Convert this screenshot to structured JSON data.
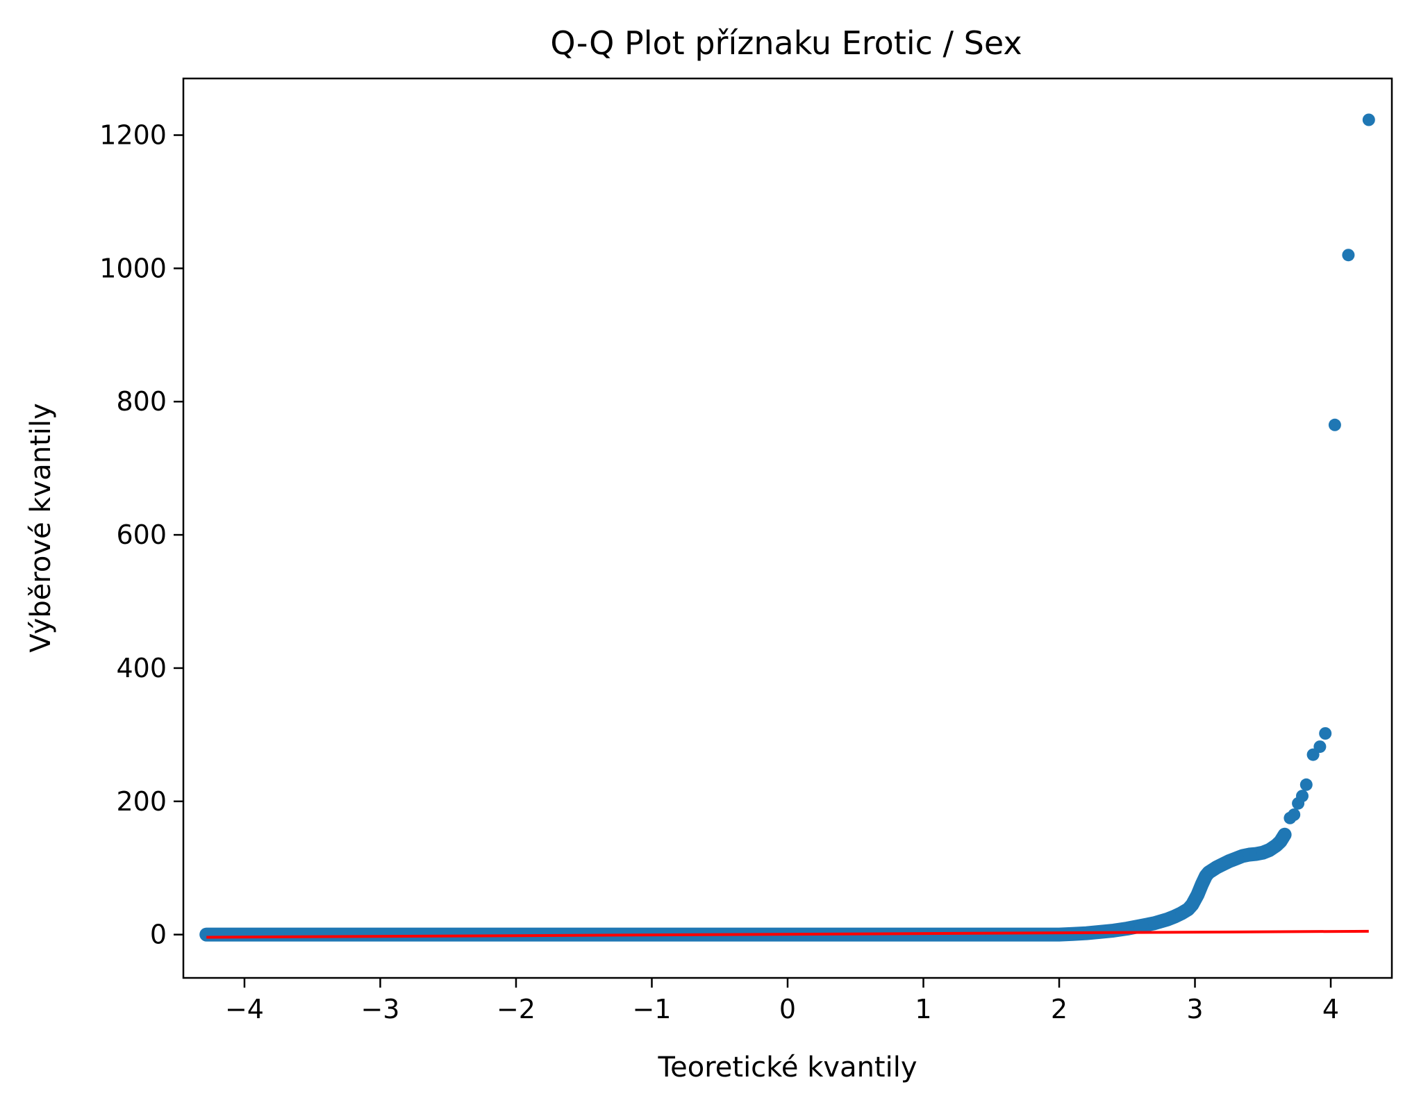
{
  "chart_data": {
    "type": "scatter",
    "title": "Q-Q Plot příznaku Erotic / Sex",
    "xlabel": "Teoretické kvantily",
    "ylabel": "Výběrové kvantily",
    "xlim": [
      -4.45,
      4.45
    ],
    "ylim": [
      -65,
      1285
    ],
    "x_ticks": [
      -4,
      -3,
      -2,
      -1,
      0,
      1,
      2,
      3,
      4
    ],
    "x_tick_labels": [
      "−4",
      "−3",
      "−2",
      "−1",
      "0",
      "1",
      "2",
      "3",
      "4"
    ],
    "y_ticks": [
      0,
      200,
      400,
      600,
      800,
      1000,
      1200
    ],
    "y_tick_labels": [
      "0",
      "200",
      "400",
      "600",
      "800",
      "1000",
      "1200"
    ],
    "grid": false,
    "colors": {
      "points": "#1f77b4",
      "fit_line": "#ff0000"
    },
    "series": [
      {
        "kind": "points",
        "x": [
          -4.28,
          -4.1,
          -4.01,
          -3.94,
          -3.88,
          -3.82,
          -3.75,
          -3.6,
          -3.4,
          -3.2,
          -3.0,
          -2.5,
          -2.0,
          -1.5,
          -1.0,
          -0.5,
          0.0,
          0.5,
          1.0,
          1.5,
          2.0,
          2.1,
          2.2,
          2.3,
          2.4,
          2.5,
          2.6,
          2.7,
          2.8,
          2.85,
          2.9,
          2.95,
          2.98,
          3.02,
          3.05,
          3.08,
          3.1,
          3.13,
          3.16,
          3.2,
          3.25,
          3.3,
          3.35,
          3.4,
          3.45,
          3.5,
          3.55,
          3.6,
          3.63,
          3.66,
          3.7,
          3.73,
          3.76,
          3.79,
          3.82,
          3.87,
          3.92,
          3.96,
          4.03,
          4.13,
          4.28
        ],
        "y": [
          0,
          0,
          0,
          0,
          0,
          0,
          0,
          0,
          0,
          0,
          0,
          0,
          0,
          0,
          0,
          0,
          0,
          0,
          0,
          0,
          0,
          1,
          2,
          4,
          6,
          9,
          13,
          17,
          23,
          27,
          32,
          38,
          45,
          60,
          75,
          88,
          93,
          97,
          101,
          105,
          110,
          114,
          118,
          120,
          121,
          123,
          127,
          134,
          140,
          150,
          175,
          180,
          197,
          208,
          225,
          270,
          282,
          302,
          765,
          1020,
          1223
        ]
      },
      {
        "kind": "fit_line",
        "x": [
          -4.28,
          4.28
        ],
        "y": [
          -4,
          5
        ]
      }
    ]
  }
}
